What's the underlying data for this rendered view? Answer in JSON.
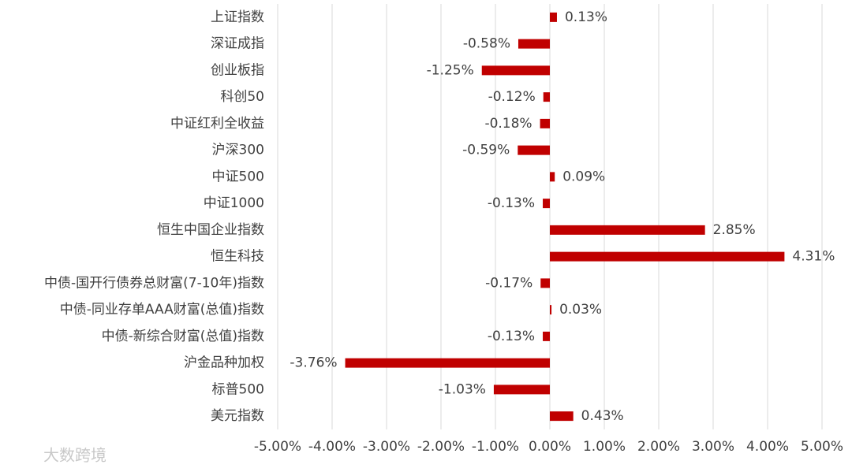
{
  "chart_data": {
    "type": "hbar",
    "categories": [
      "上证指数",
      "深证成指",
      "创业板指",
      "科创50",
      "中证红利全收益",
      "沪深300",
      "中证500",
      "中证1000",
      "恒生中国企业指数",
      "恒生科技",
      "中债-国开行债券总财富(7-10年)指数",
      "中债-同业存单AAA财富(总值)指数",
      "中债-新综合财富(总值)指数",
      "沪金品种加权",
      "标普500",
      "美元指数"
    ],
    "values": [
      0.13,
      -0.58,
      -1.25,
      -0.12,
      -0.18,
      -0.59,
      0.09,
      -0.13,
      2.85,
      4.31,
      -0.17,
      0.03,
      -0.13,
      -3.76,
      -1.03,
      0.43
    ],
    "value_labels": [
      "0.13%",
      "-0.58%",
      "-1.25%",
      "-0.12%",
      "-0.18%",
      "-0.59%",
      "0.09%",
      "-0.13%",
      "2.85%",
      "4.31%",
      "-0.17%",
      "0.03%",
      "-0.13%",
      "-3.76%",
      "-1.03%",
      "0.43%"
    ],
    "color": "#c00000",
    "xlim": [
      -5,
      5
    ],
    "xticks": [
      {
        "value": -5,
        "label": "-5.00%"
      },
      {
        "value": -4,
        "label": "-4.00%"
      },
      {
        "value": -3,
        "label": "-3.00%"
      },
      {
        "value": -2,
        "label": "-2.00%"
      },
      {
        "value": -1,
        "label": "-1.00%"
      },
      {
        "value": 0,
        "label": "0.00%"
      },
      {
        "value": 1,
        "label": "1.00%"
      },
      {
        "value": 2,
        "label": "2.00%"
      },
      {
        "value": 3,
        "label": "3.00%"
      },
      {
        "value": 4,
        "label": "4.00%"
      },
      {
        "value": 5,
        "label": "5.00%"
      }
    ],
    "grid": true,
    "watermark": "大数跨境"
  }
}
